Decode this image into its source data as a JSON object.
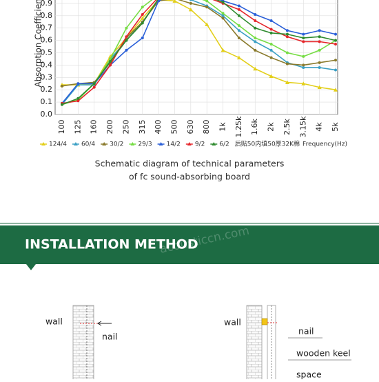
{
  "chart_data": {
    "type": "line",
    "y_label": "Absorption Coefficient",
    "x_label": "Frequency(Hz)",
    "note": "后贴50内填50厚32K棉",
    "categories": [
      "100",
      "125",
      "160",
      "200",
      "250",
      "315",
      "400",
      "500",
      "630",
      "800",
      "1k",
      "1.25k",
      "1.6k",
      "2k",
      "2.5k",
      "3.15k",
      "4k",
      "5k"
    ],
    "series": [
      {
        "name": "124/4",
        "color": "#e3cf1a",
        "marker": "triangle",
        "values": [
          0.24,
          0.24,
          0.25,
          0.47,
          0.62,
          0.78,
          0.93,
          0.92,
          0.85,
          0.73,
          0.52,
          0.46,
          0.37,
          0.31,
          0.26,
          0.25,
          0.22,
          0.2
        ]
      },
      {
        "name": "60/4",
        "color": "#3a9fc4",
        "marker": "circle",
        "values": [
          0.08,
          0.24,
          0.24,
          0.45,
          0.6,
          0.75,
          0.93,
          0.96,
          0.93,
          0.88,
          0.8,
          0.68,
          0.59,
          0.52,
          0.42,
          0.38,
          0.38,
          0.36
        ]
      },
      {
        "name": "30/2",
        "color": "#8a7a2c",
        "marker": "circle",
        "values": [
          0.23,
          0.25,
          0.26,
          0.42,
          0.62,
          0.75,
          0.92,
          0.94,
          0.9,
          0.87,
          0.78,
          0.62,
          0.52,
          0.46,
          0.41,
          0.4,
          0.42,
          0.44
        ]
      },
      {
        "name": "29/3",
        "color": "#76dd44",
        "marker": "circle",
        "values": [
          0.08,
          0.12,
          0.25,
          0.45,
          0.7,
          0.87,
          0.97,
          0.98,
          0.96,
          0.92,
          0.82,
          0.72,
          0.62,
          0.57,
          0.5,
          0.47,
          0.52,
          0.6
        ]
      },
      {
        "name": "14/2",
        "color": "#2a5fd8",
        "marker": "circle",
        "values": [
          0.09,
          0.25,
          0.25,
          0.4,
          0.52,
          0.62,
          0.92,
          0.98,
          0.97,
          0.98,
          0.92,
          0.88,
          0.81,
          0.76,
          0.68,
          0.65,
          0.68,
          0.65
        ]
      },
      {
        "name": "9/2",
        "color": "#e5262b",
        "marker": "circle",
        "values": [
          0.09,
          0.11,
          0.22,
          0.4,
          0.63,
          0.81,
          0.95,
          0.98,
          0.97,
          0.95,
          0.9,
          0.85,
          0.76,
          0.69,
          0.63,
          0.59,
          0.59,
          0.57
        ]
      },
      {
        "name": "6/2",
        "color": "#2e8a2e",
        "marker": "circle",
        "values": [
          0.08,
          0.13,
          0.25,
          0.43,
          0.6,
          0.74,
          0.94,
          0.98,
          0.97,
          0.96,
          0.91,
          0.8,
          0.7,
          0.66,
          0.65,
          0.62,
          0.63,
          0.6
        ]
      }
    ],
    "ylim": [
      0,
      1
    ],
    "yticks": [
      {
        "value": 0,
        "label": "0.0"
      },
      0.1,
      0.2,
      0.3,
      0.4,
      0.5,
      0.6,
      0.7,
      0.8,
      0.9
    ],
    "grid": true
  },
  "caption": [
    "Schematic diagram of technical parameters",
    "of fc sound-absorbing board"
  ],
  "banner": {
    "title": "INSTALLATION METHOD",
    "watermark": "acousticcn.com",
    "color": "#1d6b43"
  },
  "diagram_left": {
    "wall": "wall",
    "nail": "nail"
  },
  "diagram_right": {
    "wall": "wall",
    "nail": "nail",
    "keel": "wooden keel",
    "space": "space"
  }
}
